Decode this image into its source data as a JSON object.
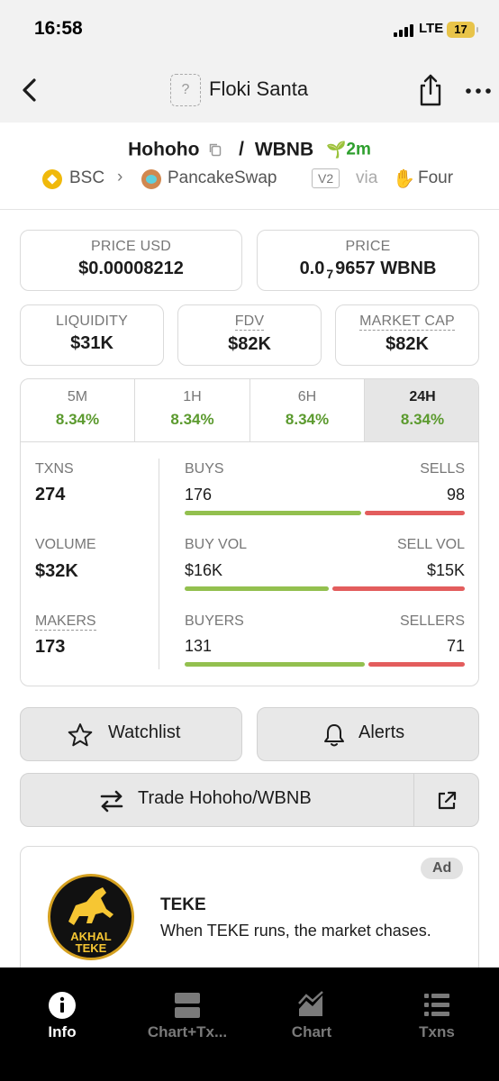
{
  "status_bar": {
    "time": "16:58",
    "network": "LTE",
    "battery": "17"
  },
  "nav": {
    "title": "Floki Santa",
    "token_icon_glyph": "?"
  },
  "pair": {
    "base": "Hohoho",
    "separator": "/",
    "quote": "WBNB",
    "age": "2m"
  },
  "chain": {
    "name": "BSC",
    "dex": "PancakeSwap",
    "version": "V2",
    "via": "via",
    "launchpad": "Four"
  },
  "stats": {
    "price_usd": {
      "label": "PRICE USD",
      "value": "$0.00008212"
    },
    "price": {
      "label": "PRICE",
      "prefix": "0.0",
      "sub": "7",
      "suffix": "9657 WBNB"
    },
    "liquidity": {
      "label": "LIQUIDITY",
      "value": "$31K"
    },
    "fdv": {
      "label": "FDV",
      "value": "$82K"
    },
    "market_cap": {
      "label": "MARKET CAP",
      "value": "$82K"
    }
  },
  "timeframes": [
    {
      "label": "5M",
      "change": "8.34%"
    },
    {
      "label": "1H",
      "change": "8.34%"
    },
    {
      "label": "6H",
      "change": "8.34%"
    },
    {
      "label": "24H",
      "change": "8.34%",
      "active": true
    }
  ],
  "metrics": {
    "txns": {
      "label": "TXNS",
      "value": "274",
      "buys_label": "BUYS",
      "buys": "176",
      "sells_label": "SELLS",
      "sells": "98",
      "buy_fraction": 0.64
    },
    "volume": {
      "label": "VOLUME",
      "value": "$32K",
      "buys_label": "BUY VOL",
      "buys": "$16K",
      "sells_label": "SELL VOL",
      "sells": "$15K",
      "buy_fraction": 0.52
    },
    "makers": {
      "label": "MAKERS",
      "value": "173",
      "buys_label": "BUYERS",
      "buys": "131",
      "sells_label": "SELLERS",
      "sells": "71",
      "buy_fraction": 0.65
    }
  },
  "actions": {
    "watchlist": "Watchlist",
    "alerts": "Alerts",
    "trade": "Trade Hohoho/WBNB"
  },
  "ad": {
    "badge": "Ad",
    "logo_text_line1": "AKHAL",
    "logo_text_line2": "TEKE",
    "title": "TEKE",
    "text": "When TEKE runs, the market chases."
  },
  "tab_bar": {
    "info": "Info",
    "chart_txns": "Chart+Tx...",
    "chart": "Chart",
    "txns": "Txns"
  },
  "colors": {
    "positive": "#5b9a2e",
    "buy_bar": "#93c04f",
    "sell_bar": "#e35d5d",
    "sprout": "#2e9f2e"
  }
}
